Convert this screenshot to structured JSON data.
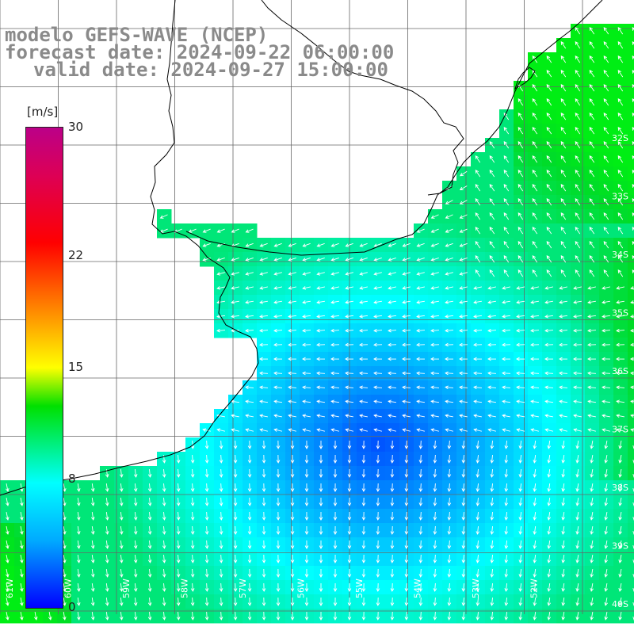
{
  "header": {
    "line1": "modelo GEFS-WAVE (NCEP)",
    "line2": "forecast date: 2024-09-22 06:00:00",
    "line3": "valid date: 2024-09-27 15:00:00"
  },
  "colorbar": {
    "unit": "[m/s]",
    "ticks": [
      {
        "label": "30",
        "value": 30
      },
      {
        "label": "22",
        "value": 22
      },
      {
        "label": "15",
        "value": 15
      },
      {
        "label": "8",
        "value": 8
      },
      {
        "label": "0",
        "value": 0
      }
    ]
  },
  "map": {
    "lon_range": [
      -62,
      -51
    ],
    "lat_range": [
      -30.5,
      -41
    ],
    "lon_labels": [
      "61W",
      "60W",
      "59W",
      "58W",
      "57W",
      "56W",
      "55W",
      "54W",
      "53W",
      "52W"
    ],
    "lat_labels": [
      "32S",
      "33S",
      "34S",
      "35S",
      "36S",
      "37S",
      "38S",
      "39S",
      "40S"
    ],
    "colors": {
      "ocean_deep": "#0033ff",
      "ocean_mid": "#00aaff",
      "ocean_high": "#00ffff",
      "wind_strong": "#00dd33",
      "land": "#ffffff",
      "grid": "#666666",
      "coast": "#000000",
      "arrow": "#ffffff"
    }
  }
}
